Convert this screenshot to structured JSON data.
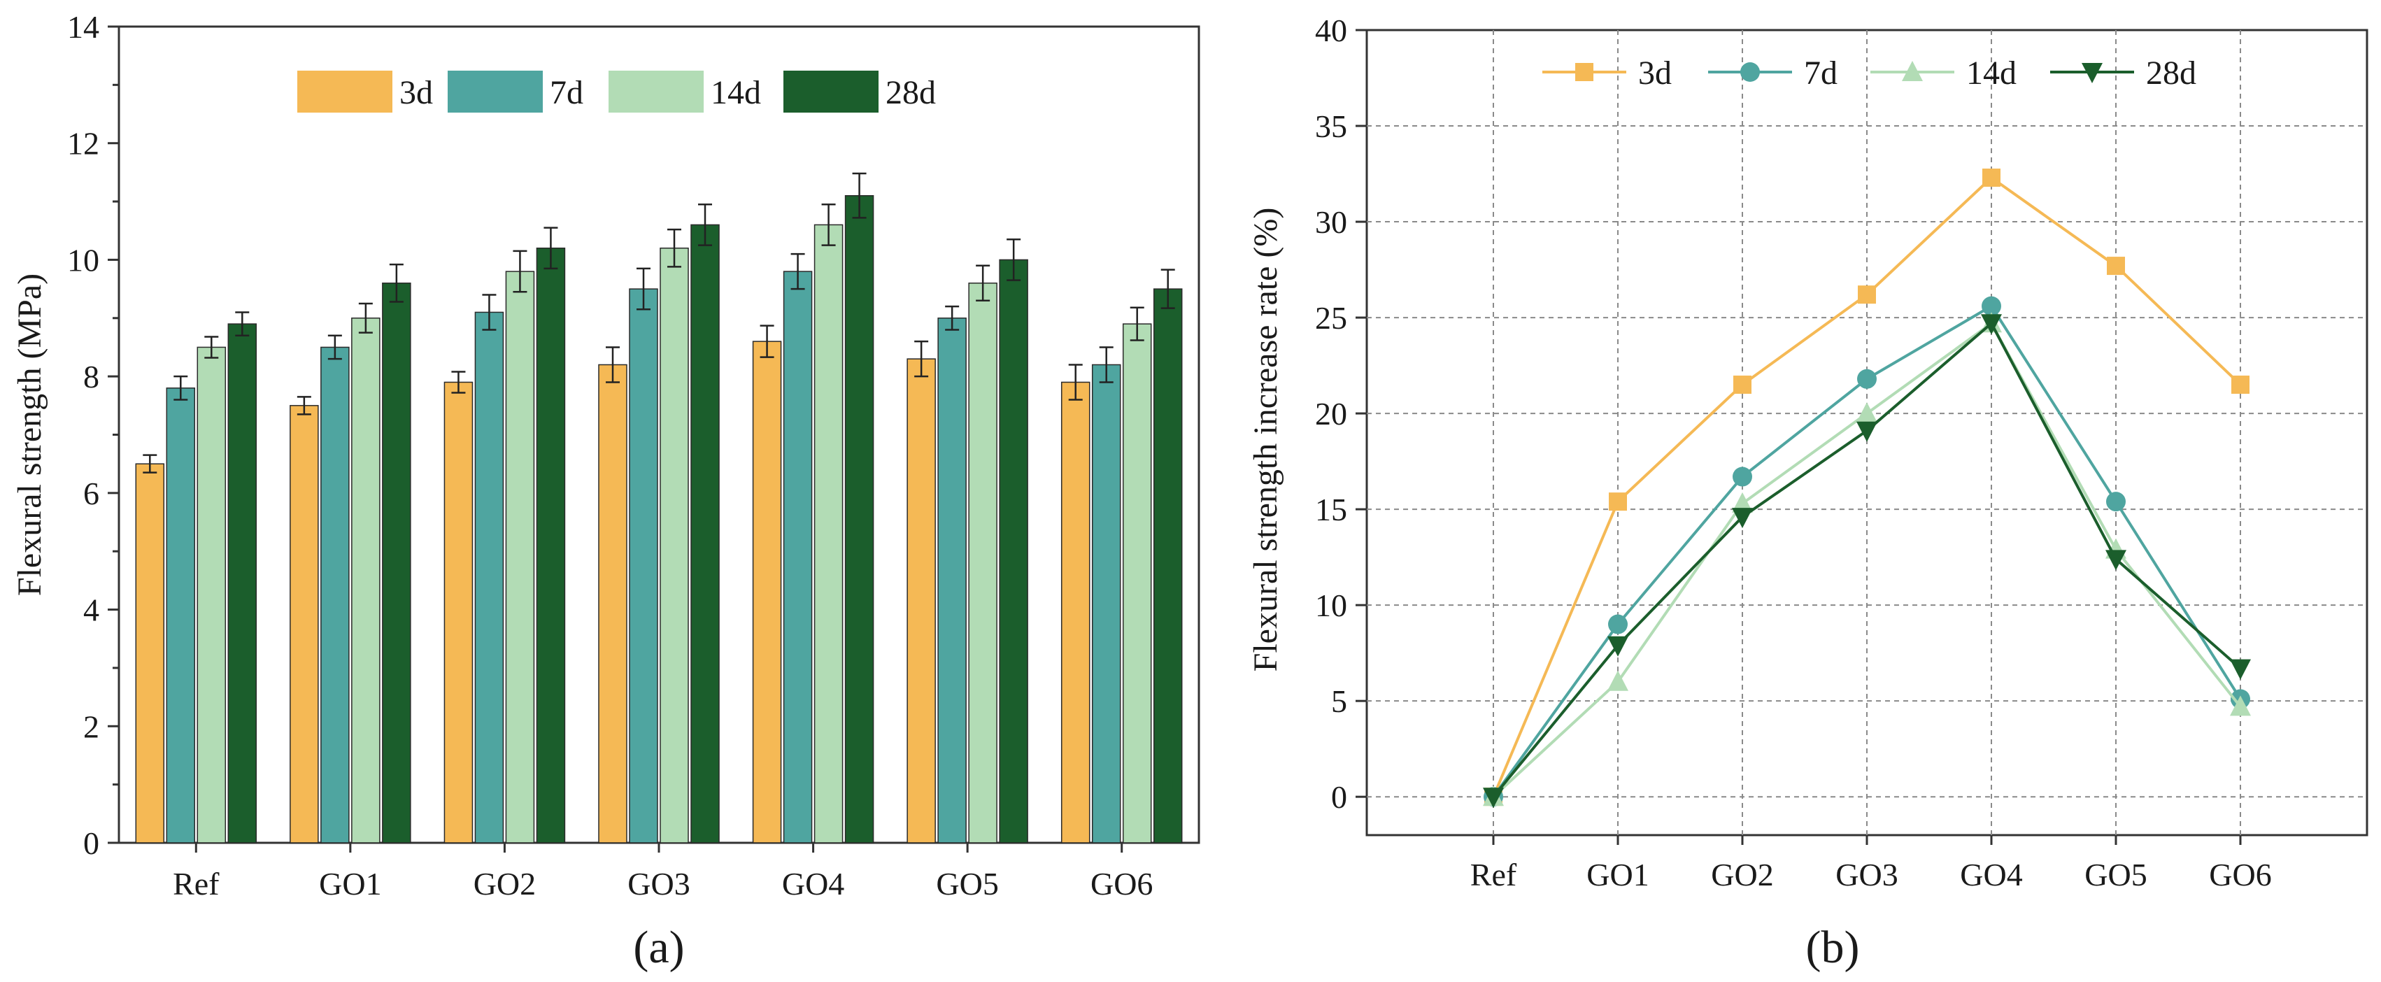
{
  "chart_data": [
    {
      "type": "bar",
      "panel_label": "(a)",
      "categories": [
        "Ref",
        "GO1",
        "GO2",
        "GO3",
        "GO4",
        "GO5",
        "GO6"
      ],
      "xlabel": "",
      "ylabel": "Flexural strength (MPa)",
      "ylim": [
        0,
        14
      ],
      "yticks": [
        0,
        2,
        4,
        6,
        8,
        10,
        12,
        14
      ],
      "ytick_labels": [
        "0",
        "2",
        "4",
        "6",
        "8",
        "10",
        "12",
        "14"
      ],
      "grid": false,
      "legend": "top",
      "error_bars": true,
      "series": [
        {
          "name": "3d",
          "color": "#f5b955",
          "values": [
            6.5,
            7.5,
            7.9,
            8.2,
            8.6,
            8.3,
            7.9
          ],
          "errors": [
            0.15,
            0.15,
            0.18,
            0.3,
            0.27,
            0.3,
            0.3
          ]
        },
        {
          "name": "7d",
          "color": "#4fa5a0",
          "values": [
            7.8,
            8.5,
            9.1,
            9.5,
            9.8,
            9.0,
            8.2
          ],
          "errors": [
            0.2,
            0.2,
            0.3,
            0.35,
            0.3,
            0.2,
            0.3
          ]
        },
        {
          "name": "14d",
          "color": "#b2dcb5",
          "values": [
            8.5,
            9.0,
            9.8,
            10.2,
            10.6,
            9.6,
            8.9
          ],
          "errors": [
            0.18,
            0.25,
            0.35,
            0.32,
            0.35,
            0.3,
            0.28
          ]
        },
        {
          "name": "28d",
          "color": "#1b5e2c",
          "values": [
            8.9,
            9.6,
            10.2,
            10.6,
            11.1,
            10.0,
            9.5
          ],
          "errors": [
            0.2,
            0.32,
            0.35,
            0.35,
            0.38,
            0.35,
            0.33
          ]
        }
      ]
    },
    {
      "type": "line",
      "panel_label": "(b)",
      "categories": [
        "Ref",
        "GO1",
        "GO2",
        "GO3",
        "GO4",
        "GO5",
        "GO6"
      ],
      "xlabel": "",
      "ylabel": "Flexural strength increase rate (%)",
      "ylim": [
        -2,
        40
      ],
      "yticks": [
        0,
        5,
        10,
        15,
        20,
        25,
        30,
        35,
        40
      ],
      "ytick_labels": [
        "0",
        "5",
        "10",
        "15",
        "20",
        "25",
        "30",
        "35",
        "40"
      ],
      "grid": true,
      "legend": "top",
      "series": [
        {
          "name": "3d",
          "color": "#f5b955",
          "marker": "square",
          "values": [
            0,
            15.4,
            21.5,
            26.2,
            32.3,
            27.7,
            21.5
          ]
        },
        {
          "name": "7d",
          "color": "#4fa5a0",
          "marker": "circle",
          "values": [
            0,
            9.0,
            16.7,
            21.8,
            25.6,
            15.4,
            5.1
          ]
        },
        {
          "name": "14d",
          "color": "#b2dcb5",
          "marker": "triangle-up",
          "values": [
            0,
            6.0,
            15.3,
            20.0,
            24.7,
            12.9,
            4.7
          ]
        },
        {
          "name": "28d",
          "color": "#1b5e2c",
          "marker": "triangle-down",
          "values": [
            0,
            7.9,
            14.6,
            19.1,
            24.7,
            12.4,
            6.7
          ]
        }
      ]
    }
  ]
}
